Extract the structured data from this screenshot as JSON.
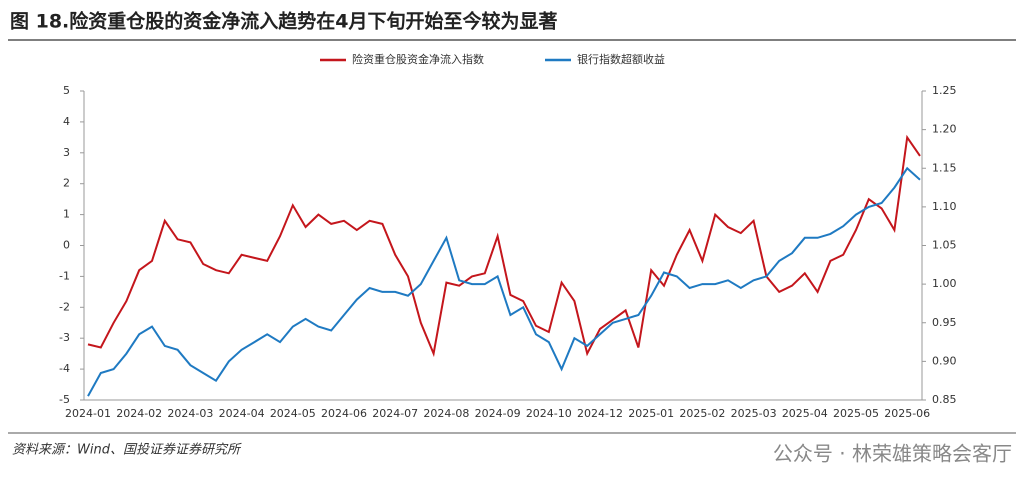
{
  "chart_data": {
    "type": "line",
    "title": "图 18.险资重仓股的资金净流入趋势在4月下旬开始至今较为显著",
    "source": "资料来源：Wind、国投证券证券研究所",
    "watermark": "公众号 · 林荣雄策略会客厅",
    "categories": [
      "2024-01",
      null,
      null,
      null,
      "2024-02",
      null,
      null,
      null,
      "2024-03",
      null,
      null,
      null,
      "2024-04",
      null,
      null,
      null,
      "2024-05",
      null,
      null,
      null,
      "2024-06",
      null,
      null,
      null,
      "2024-07",
      null,
      null,
      null,
      "2024-08",
      null,
      null,
      null,
      "2024-09",
      null,
      null,
      null,
      "2024-10",
      null,
      null,
      null,
      "2024-12",
      null,
      null,
      null,
      "2025-01",
      null,
      null,
      null,
      "2025-02",
      null,
      null,
      null,
      "2025-03",
      null,
      null,
      null,
      "2025-04",
      null,
      null,
      null,
      "2025-05",
      null,
      null,
      null,
      "2025-06",
      null
    ],
    "series": [
      {
        "name": "险资重仓股资金净流入指数",
        "color": "#c4161c",
        "axis": "y",
        "values": [
          -3.2,
          -3.3,
          -2.5,
          -1.8,
          -0.8,
          -0.5,
          0.8,
          0.2,
          0.1,
          -0.6,
          -0.8,
          -0.9,
          -0.3,
          -0.4,
          -0.5,
          0.3,
          1.3,
          0.6,
          1.0,
          0.7,
          0.8,
          0.5,
          0.8,
          0.7,
          -0.3,
          -1.0,
          -2.5,
          -3.5,
          -1.2,
          -1.3,
          -1.0,
          -0.9,
          0.3,
          -1.6,
          -1.8,
          -2.6,
          -2.8,
          -1.2,
          -1.8,
          -3.5,
          -2.7,
          -2.4,
          -2.1,
          -3.3,
          -0.8,
          -1.3,
          -0.3,
          0.5,
          -0.5,
          1.0,
          0.6,
          0.4,
          0.8,
          -1.0,
          -1.5,
          -1.3,
          -0.9,
          -1.5,
          -0.5,
          -0.3,
          0.5,
          1.5,
          1.2,
          0.5,
          3.5,
          2.9
        ]
      },
      {
        "name": "银行指数超额收益",
        "color": "#1f7ac2",
        "axis": "y2",
        "values": [
          0.855,
          0.885,
          0.89,
          0.91,
          0.935,
          0.945,
          0.92,
          0.915,
          0.895,
          0.885,
          0.875,
          0.9,
          0.915,
          0.925,
          0.935,
          0.925,
          0.945,
          0.955,
          0.945,
          0.94,
          0.96,
          0.98,
          0.995,
          0.99,
          0.99,
          0.985,
          1.0,
          1.03,
          1.06,
          1.005,
          1.0,
          1.0,
          1.01,
          0.96,
          0.97,
          0.935,
          0.925,
          0.89,
          0.93,
          0.92,
          0.935,
          0.95,
          0.955,
          0.96,
          0.985,
          1.015,
          1.01,
          0.995,
          1.0,
          1.0,
          1.005,
          0.995,
          1.005,
          1.01,
          1.03,
          1.04,
          1.06,
          1.06,
          1.065,
          1.075,
          1.09,
          1.1,
          1.105,
          1.125,
          1.15,
          1.135
        ]
      }
    ],
    "ylim": [
      -5,
      5
    ],
    "yticks": [
      -5,
      -4,
      -3,
      -2,
      -1,
      0,
      1,
      2,
      3,
      4,
      5
    ],
    "y2lim": [
      0.85,
      1.25
    ],
    "y2ticks": [
      0.85,
      {
        "value": 0.9,
        "label": "0.90"
      },
      0.95,
      {
        "value": 1,
        "label": "1.00"
      },
      1.05,
      {
        "value": 1.1,
        "label": "1.10"
      },
      1.15,
      {
        "value": 1.2,
        "label": "1.20"
      },
      1.25
    ],
    "grid": false
  }
}
